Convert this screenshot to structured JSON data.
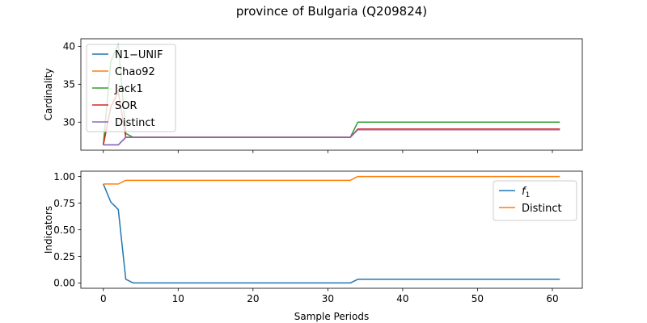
{
  "figure": {
    "title": "province of Bulgaria (Q209824)",
    "xlabel": "Sample Periods"
  },
  "chart_data": [
    {
      "type": "line",
      "ylabel": "Cardinality",
      "xlim": [
        -3,
        64
      ],
      "ylim": [
        26.3,
        41.0
      ],
      "yticks": [
        30,
        35,
        40
      ],
      "xticks": [
        0,
        10,
        20,
        30,
        40,
        50,
        60
      ],
      "show_xticklabels": false,
      "legend_position": "upper-left",
      "series": [
        {
          "name": "N1−UNIF",
          "color": "#1f77b4",
          "points": [
            [
              0,
              27
            ],
            [
              1,
              27
            ],
            [
              2,
              27
            ],
            [
              3,
              28
            ],
            [
              4,
              28
            ],
            [
              33,
              28
            ],
            [
              34,
              29
            ],
            [
              61,
              29
            ]
          ]
        },
        {
          "name": "Chao92",
          "color": "#ff7f0e",
          "points": [
            [
              0,
              27
            ],
            [
              1,
              32
            ],
            [
              2,
              34
            ],
            [
              3,
              28
            ],
            [
              4,
              28
            ],
            [
              33,
              28
            ],
            [
              34,
              29
            ],
            [
              61,
              29
            ]
          ]
        },
        {
          "name": "Jack1",
          "color": "#2ca02c",
          "points": [
            [
              0,
              27
            ],
            [
              1,
              38
            ],
            [
              2,
              40.3
            ],
            [
              3,
              28.5
            ],
            [
              4,
              28
            ],
            [
              33,
              28
            ],
            [
              34,
              30
            ],
            [
              61,
              30
            ]
          ]
        },
        {
          "name": "SOR",
          "color": "#d62728",
          "points": [
            [
              0,
              27
            ],
            [
              1,
              32
            ],
            [
              2,
              34
            ],
            [
              3,
              28
            ],
            [
              4,
              28
            ],
            [
              33,
              28
            ],
            [
              34,
              29.1
            ],
            [
              61,
              29.1
            ]
          ]
        },
        {
          "name": "Distinct",
          "color": "#9467bd",
          "points": [
            [
              0,
              27
            ],
            [
              1,
              27
            ],
            [
              2,
              27
            ],
            [
              3,
              28
            ],
            [
              4,
              28
            ],
            [
              33,
              28
            ],
            [
              34,
              29
            ],
            [
              61,
              29
            ]
          ]
        }
      ]
    },
    {
      "type": "line",
      "ylabel": "Indicators",
      "xlim": [
        -3,
        64
      ],
      "ylim": [
        -0.05,
        1.05
      ],
      "yticks": [
        0.0,
        0.25,
        0.5,
        0.75,
        1.0
      ],
      "ytick_labels": [
        "0.00",
        "0.25",
        "0.50",
        "0.75",
        "1.00"
      ],
      "xticks": [
        0,
        10,
        20,
        30,
        40,
        50,
        60
      ],
      "show_xticklabels": true,
      "legend_position": "upper-right",
      "series": [
        {
          "name": "f1",
          "name_main": "f",
          "name_sub": "1",
          "color": "#1f77b4",
          "points": [
            [
              0,
              0.93
            ],
            [
              1,
              0.76
            ],
            [
              2,
              0.69
            ],
            [
              3,
              0.035
            ],
            [
              4,
              0
            ],
            [
              33,
              0
            ],
            [
              34,
              0.034
            ],
            [
              61,
              0.034
            ]
          ]
        },
        {
          "name": "Distinct",
          "color": "#ff7f0e",
          "points": [
            [
              0,
              0.93
            ],
            [
              2,
              0.93
            ],
            [
              3,
              0.964
            ],
            [
              33,
              0.964
            ],
            [
              34,
              1.0
            ],
            [
              61,
              1.0
            ]
          ]
        }
      ]
    }
  ]
}
